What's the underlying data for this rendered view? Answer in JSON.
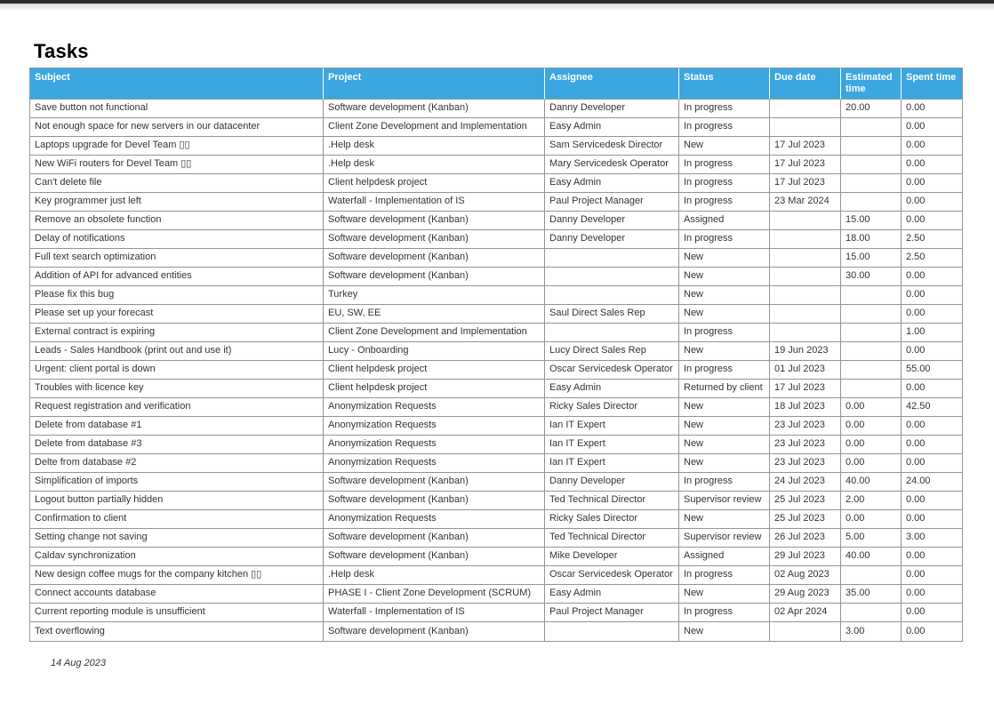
{
  "page": {
    "title": "Tasks",
    "footer_date": "14 Aug 2023"
  },
  "colors": {
    "header_bg": "#3aa7e0",
    "header_text": "#ffffff",
    "grid_line": "#949494",
    "cell_text": "#333333",
    "top_bar": "#2b2b2b"
  },
  "table": {
    "columns": [
      {
        "key": "subject",
        "label": "Subject"
      },
      {
        "key": "project",
        "label": "Project"
      },
      {
        "key": "assignee",
        "label": "Assignee"
      },
      {
        "key": "status",
        "label": "Status"
      },
      {
        "key": "duedate",
        "label": "Due date"
      },
      {
        "key": "estimated",
        "label": "Estimated time"
      },
      {
        "key": "spent",
        "label": "Spent time"
      }
    ],
    "rows": [
      [
        "Save button not functional",
        "Software development (Kanban)",
        "Danny Developer",
        "In progress",
        "",
        "20.00",
        "0.00"
      ],
      [
        "Not enough space for new servers in our datacenter",
        "Client Zone Development and Implementation",
        "Easy Admin",
        "In progress",
        "",
        "",
        "0.00"
      ],
      [
        "Laptops upgrade for Devel Team ▯▯",
        ".Help desk",
        "Sam Servicedesk Director",
        "New",
        "17 Jul 2023",
        "",
        "0.00"
      ],
      [
        "New WiFi routers for Devel Team ▯▯",
        ".Help desk",
        "Mary Servicedesk Operator",
        "In progress",
        "17 Jul 2023",
        "",
        "0.00"
      ],
      [
        "Can't delete file",
        "Client helpdesk project",
        "Easy Admin",
        "In progress",
        "17 Jul 2023",
        "",
        "0.00"
      ],
      [
        "Key programmer just left",
        "Waterfall - Implementation of IS",
        "Paul Project Manager",
        "In progress",
        "23 Mar 2024",
        "",
        "0.00"
      ],
      [
        "Remove an obsolete function",
        "Software development (Kanban)",
        "Danny Developer",
        "Assigned",
        "",
        "15.00",
        "0.00"
      ],
      [
        "Delay of notifications",
        "Software development (Kanban)",
        "Danny Developer",
        "In progress",
        "",
        "18.00",
        "2.50"
      ],
      [
        "Full text search optimization",
        "Software development (Kanban)",
        "",
        "New",
        "",
        "15.00",
        "2.50"
      ],
      [
        "Addition of API for advanced entities",
        "Software development (Kanban)",
        "",
        "New",
        "",
        "30.00",
        "0.00"
      ],
      [
        "Please fix this bug",
        "Turkey",
        "",
        "New",
        "",
        "",
        "0.00"
      ],
      [
        "Please set up your forecast",
        "EU, SW, EE",
        "Saul Direct Sales Rep",
        "New",
        "",
        "",
        "0.00"
      ],
      [
        "External contract is expiring",
        "Client Zone Development and Implementation",
        "",
        "In progress",
        "",
        "",
        "1.00"
      ],
      [
        "Leads - Sales Handbook (print out and use it)",
        "Lucy - Onboarding",
        "Lucy Direct Sales Rep",
        "New",
        "19 Jun 2023",
        "",
        "0.00"
      ],
      [
        "Urgent: client portal is down",
        "Client helpdesk project",
        "Oscar Servicedesk Operator",
        "In progress",
        "01 Jul 2023",
        "",
        "55.00"
      ],
      [
        "Troubles with licence key",
        "Client helpdesk project",
        "Easy Admin",
        "Returned by client",
        "17 Jul 2023",
        "",
        "0.00"
      ],
      [
        "Request registration and verification",
        "Anonymization Requests",
        "Ricky Sales Director",
        "New",
        "18 Jul 2023",
        "0.00",
        "42.50"
      ],
      [
        "Delete from database #1",
        "Anonymization Requests",
        "Ian IT Expert",
        "New",
        "23 Jul 2023",
        "0.00",
        "0.00"
      ],
      [
        "Delete from database #3",
        "Anonymization Requests",
        "Ian IT Expert",
        "New",
        "23 Jul 2023",
        "0.00",
        "0.00"
      ],
      [
        "Delte from database #2",
        "Anonymization Requests",
        "Ian IT Expert",
        "New",
        "23 Jul 2023",
        "0.00",
        "0.00"
      ],
      [
        "Simplification of imports",
        "Software development (Kanban)",
        "Danny Developer",
        "In progress",
        "24 Jul 2023",
        "40.00",
        "24.00"
      ],
      [
        "Logout button partially hidden",
        "Software development (Kanban)",
        "Ted Technical Director",
        "Supervisor review",
        "25 Jul 2023",
        "2.00",
        "0.00"
      ],
      [
        "Confirmation to client",
        "Anonymization Requests",
        "Ricky Sales Director",
        "New",
        "25 Jul 2023",
        "0.00",
        "0.00"
      ],
      [
        "Setting change not saving",
        "Software development (Kanban)",
        "Ted Technical Director",
        "Supervisor review",
        "26 Jul 2023",
        "5.00",
        "3.00"
      ],
      [
        "Caldav synchronization",
        "Software development (Kanban)",
        "Mike Developer",
        "Assigned",
        "29 Jul 2023",
        "40.00",
        "0.00"
      ],
      [
        "New design coffee mugs for the company kitchen ▯▯",
        ".Help desk",
        "Oscar Servicedesk Operator",
        "In progress",
        "02 Aug 2023",
        "",
        "0.00"
      ],
      [
        "Connect accounts database",
        "PHASE I - Client Zone Development (SCRUM)",
        "Easy Admin",
        "New",
        "29 Aug 2023",
        "35.00",
        "0.00"
      ],
      [
        "Current reporting module is unsufficient",
        "Waterfall - Implementation of IS",
        "Paul Project Manager",
        "In progress",
        "02 Apr 2024",
        "",
        "0.00"
      ],
      [
        "Text overflowing",
        "Software development (Kanban)",
        "",
        "New",
        "",
        "3.00",
        "0.00"
      ]
    ]
  }
}
